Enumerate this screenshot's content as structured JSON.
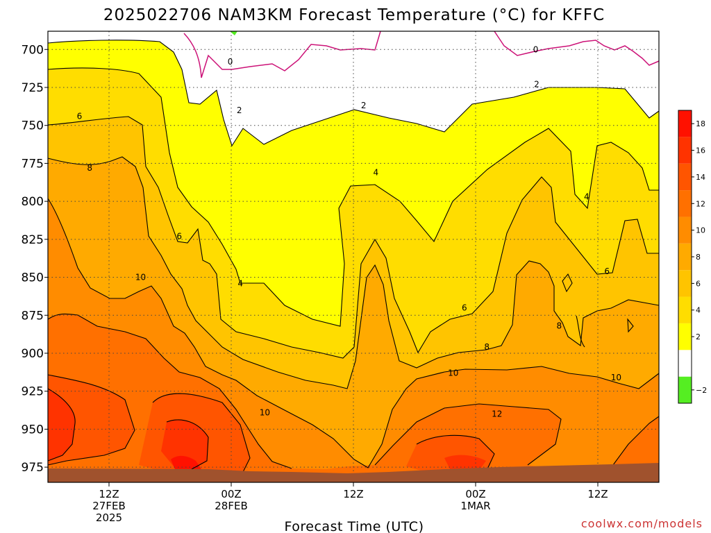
{
  "chart_data": {
    "type": "heatmap",
    "title": "2025022706 NAM3KM Forecast Temperature (°C) for KFFC",
    "xlabel": "Forecast Time (UTC)",
    "ylabel": "",
    "y_axis": {
      "inverted": true,
      "ticks": [
        "700",
        "725",
        "750",
        "775",
        "800",
        "825",
        "850",
        "875",
        "900",
        "925",
        "950",
        "975"
      ],
      "tick_values": [
        700,
        725,
        750,
        775,
        800,
        825,
        850,
        875,
        900,
        925,
        950,
        975
      ],
      "range": [
        688,
        985
      ]
    },
    "x_axis": {
      "range_hours": [
        6,
        66
      ],
      "ticks": [
        {
          "hour": 12,
          "lines": [
            "12Z",
            "27FEB",
            "2025"
          ]
        },
        {
          "hour": 24,
          "lines": [
            "00Z",
            "28FEB"
          ]
        },
        {
          "hour": 36,
          "lines": [
            "12Z"
          ]
        },
        {
          "hour": 48,
          "lines": [
            "00Z",
            "1MAR"
          ]
        },
        {
          "hour": 60,
          "lines": [
            "12Z"
          ]
        }
      ]
    },
    "grid": true,
    "colorbar": {
      "placement": "right",
      "levels": [
        -2,
        0,
        2,
        4,
        6,
        8,
        10,
        12,
        14,
        16,
        18,
        20
      ],
      "labels": [
        "−2",
        "2",
        "4",
        "6",
        "8",
        "10",
        "12",
        "14",
        "16",
        "18"
      ],
      "colors": [
        "#55ee22",
        "#ffffff",
        "#ffff00",
        "#ffdd00",
        "#ffc400",
        "#ffaa00",
        "#ff8c00",
        "#ff7000",
        "#ff5500",
        "#ff3300",
        "#ff1100"
      ]
    },
    "ground_color": "#a0522d",
    "contour_labels": [
      {
        "text": "0",
        "hour": 23.9,
        "p": 708
      },
      {
        "text": "0",
        "hour": 53.9,
        "p": 700
      },
      {
        "text": "2",
        "hour": 24.8,
        "p": 740
      },
      {
        "text": "2",
        "hour": 37,
        "p": 737
      },
      {
        "text": "2",
        "hour": 54,
        "p": 723
      },
      {
        "text": "4",
        "hour": 38.2,
        "p": 781
      },
      {
        "text": "4",
        "hour": 58.9,
        "p": 797
      },
      {
        "text": "4",
        "hour": 24.9,
        "p": 854
      },
      {
        "text": "6",
        "hour": 9.1,
        "p": 744
      },
      {
        "text": "6",
        "hour": 18.9,
        "p": 823
      },
      {
        "text": "6",
        "hour": 46.9,
        "p": 870
      },
      {
        "text": "6",
        "hour": 60.9,
        "p": 846
      },
      {
        "text": "8",
        "hour": 10.1,
        "p": 778
      },
      {
        "text": "8",
        "hour": 49.1,
        "p": 896
      },
      {
        "text": "8",
        "hour": 56.2,
        "p": 882
      },
      {
        "text": "10",
        "hour": 15.1,
        "p": 850
      },
      {
        "text": "10",
        "hour": 27.3,
        "p": 939
      },
      {
        "text": "10",
        "hour": 45.8,
        "p": 913
      },
      {
        "text": "10",
        "hour": 61.8,
        "p": 916
      },
      {
        "text": "12",
        "hour": 50.1,
        "p": 940
      }
    ]
  },
  "credit": "coolwx.com/models"
}
